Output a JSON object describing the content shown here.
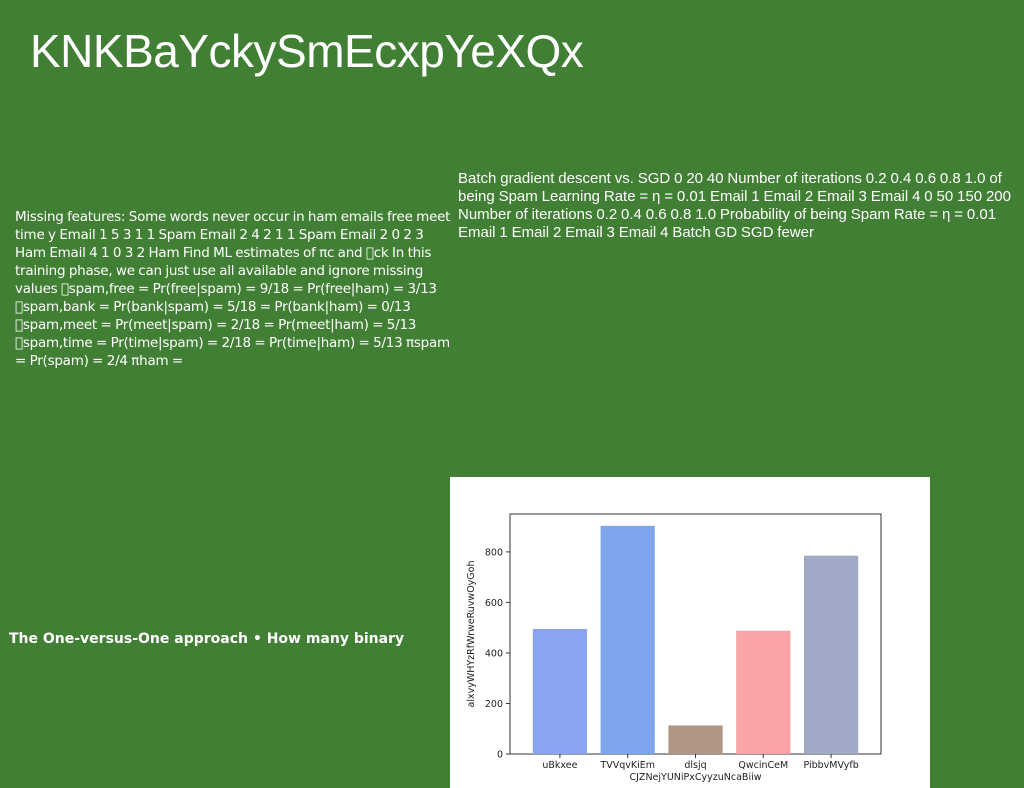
{
  "slide": {
    "title": "KNKBaYckySmEcxpYeXQx",
    "left_text": "Missing features: Some words never occur in ham emails free meet time y Email 1 5 3 1 1 Spam Email 2 4 2 1 1 Spam Email 2 0 2 3 Ham Email 4 1 0 3 2 Ham Find ML estimates of πc and \u0000ck In this training phase, we can just use all available and ignore missing values \u0000spam,free = Pr(free|spam) = 9/18 = Pr(free|ham) = 3/13 \u0000spam,bank = Pr(bank|spam) = 5/18 = Pr(bank|ham) = 0/13 \u0000spam,meet = Pr(meet|spam) = 2/18 = Pr(meet|ham) = 5/13 \u0000spam,time = Pr(time|spam) = 2/18 = Pr(time|ham) = 5/13 πspam = Pr(spam) = 2/4 πham =",
    "right_text": "Batch gradient descent vs. SGD 0 20 40 Number of iterations 0.2 0.4 0.6 0.8 1.0 of being Spam Learning Rate = η = 0.01 Email 1 Email 2 Email 3 Email 4 0 50 150 200 Number of iterations 0.2 0.4 0.6 0.8 1.0 Probability of being Spam Rate = η = 0.01 Email 1 Email 2 Email 3 Email 4 Batch GD SGD fewer",
    "bold_text": "The One-versus-One approach • How many binary"
  },
  "chart_data": {
    "type": "bar",
    "categories": [
      "uBkxee",
      "TVVqvKiEm",
      "dlsjq",
      "QwcinCeM",
      "PibbvMVyfb"
    ],
    "values": [
      495,
      903,
      113,
      488,
      785
    ],
    "colors": [
      "#8aa4ef",
      "#7fa6ec",
      "#b09686",
      "#f9a4a8",
      "#a0a9c6"
    ],
    "xlabel": "CJZNejYUNiPxCyyzuNcaBiiw",
    "ylabel": "alxvyWHYzRfWrweRuvwOyGoh",
    "ylim": [
      0,
      950
    ],
    "yticks": [
      0,
      200,
      400,
      600,
      800
    ],
    "grid": false
  }
}
